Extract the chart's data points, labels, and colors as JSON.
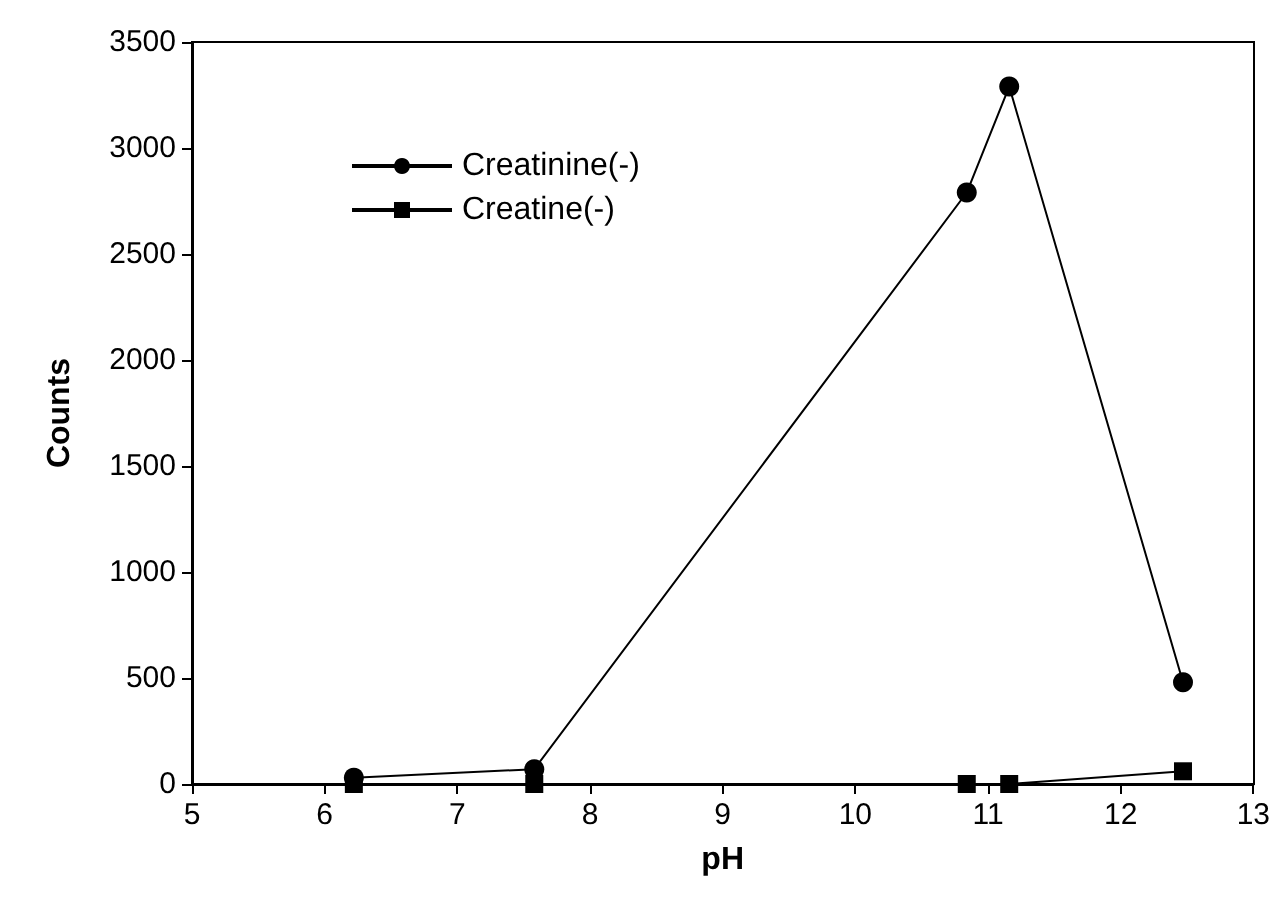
{
  "chart_data": {
    "type": "line",
    "xlabel": "pH",
    "ylabel": "Counts",
    "xlim": [
      5,
      13
    ],
    "xticks": [
      5,
      6,
      7,
      8,
      9,
      10,
      11,
      12,
      13
    ],
    "ylim": [
      0,
      3500
    ],
    "yticks": [
      0,
      500,
      1000,
      1500,
      2000,
      2500,
      3000,
      3500
    ],
    "grid": false,
    "legend": "top left",
    "line_style": "solid",
    "series": [
      {
        "name": "Creatinine(-)",
        "color": "#000000",
        "marker": "circle",
        "x": [
          6.22,
          7.58,
          10.84,
          11.16,
          12.47
        ],
        "values": [
          30,
          70,
          2790,
          3290,
          480
        ]
      },
      {
        "name": "Creatine(-)",
        "color": "#000000",
        "marker": "square",
        "x": [
          6.22,
          7.58,
          10.84,
          11.16,
          12.47
        ],
        "values": [
          0,
          0,
          0,
          0,
          60
        ]
      }
    ]
  }
}
